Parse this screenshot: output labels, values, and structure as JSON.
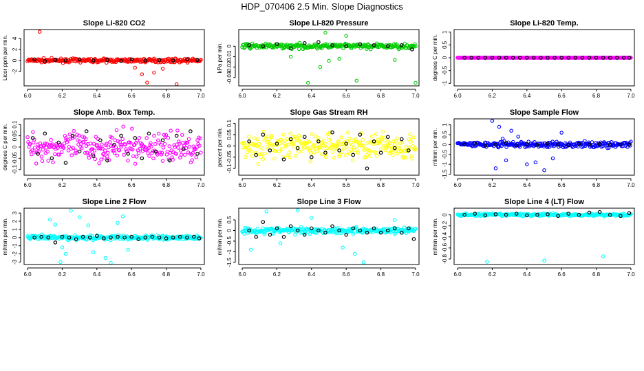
{
  "title": "HDP_070406  2.5 Min. Slope Diagnostics",
  "chart_data": [
    {
      "type": "scatter",
      "title": "Slope Li-820 CO2",
      "ylabel": "Licor ppm per min.",
      "color": "#ff0000",
      "xlim": [
        5.98,
        7.02
      ],
      "ylim": [
        -4.6,
        5.6
      ],
      "yticks": [
        -2,
        0,
        2,
        4
      ],
      "xticks": [
        6.0,
        6.2,
        6.4,
        6.6,
        6.8,
        7.0
      ],
      "xtick_labels": [
        "6.0",
        "6.2",
        "6.4",
        "6.6",
        "6.8",
        "7.0"
      ],
      "spread": 0.55,
      "outliers": [
        [
          6.07,
          5.2
        ],
        [
          6.66,
          -2.5
        ],
        [
          6.69,
          -4.0
        ],
        [
          6.73,
          -2.2
        ],
        [
          6.78,
          -1.5
        ],
        [
          6.86,
          -4.3
        ],
        [
          6.62,
          -1.3
        ]
      ],
      "black_points": [
        [
          6.04,
          0.2
        ],
        [
          6.1,
          -0.1
        ],
        [
          6.16,
          0.1
        ],
        [
          6.22,
          0.0
        ],
        [
          6.3,
          0.2
        ],
        [
          6.38,
          0.0
        ],
        [
          6.46,
          0.1
        ],
        [
          6.54,
          -0.1
        ],
        [
          6.6,
          0.2
        ],
        [
          6.68,
          0.0
        ],
        [
          6.76,
          0.1
        ],
        [
          6.84,
          0.0
        ],
        [
          6.92,
          0.2
        ],
        [
          6.98,
          0.1
        ]
      ]
    },
    {
      "type": "scatter",
      "title": "Slope Li-820 Pressure",
      "ylabel": "kPa per min.",
      "color": "#00cc00",
      "xlim": [
        5.98,
        7.02
      ],
      "ylim": [
        -0.038,
        0.016
      ],
      "yticks": [
        -0.03,
        -0.02,
        -0.01,
        0.0
      ],
      "xticks": [
        6.0,
        6.2,
        6.4,
        6.6,
        6.8,
        7.0
      ],
      "xtick_labels": [
        "6.0",
        "6.2",
        "6.4",
        "6.6",
        "6.8",
        "7.0"
      ],
      "spread": 0.004,
      "outliers": [
        [
          6.38,
          -0.035
        ],
        [
          6.66,
          -0.033
        ],
        [
          7.0,
          -0.035
        ],
        [
          6.45,
          -0.02
        ],
        [
          6.5,
          -0.014
        ],
        [
          6.56,
          -0.012
        ],
        [
          6.28,
          -0.01
        ],
        [
          6.88,
          -0.013
        ],
        [
          6.48,
          0.013
        ],
        [
          6.6,
          0.01
        ]
      ],
      "black_points": [
        [
          6.04,
          0.001
        ],
        [
          6.12,
          0.0
        ],
        [
          6.2,
          0.002
        ],
        [
          6.28,
          -0.002
        ],
        [
          6.36,
          0.003
        ],
        [
          6.44,
          0.004
        ],
        [
          6.52,
          0.001
        ],
        [
          6.6,
          0.0
        ],
        [
          6.68,
          0.002
        ],
        [
          6.76,
          0.001
        ],
        [
          6.84,
          0.0
        ],
        [
          6.92,
          0.001
        ],
        [
          6.98,
          -0.003
        ]
      ]
    },
    {
      "type": "scatter",
      "title": "Slope Li-820 Temp.",
      "ylabel": "degrees C per min.",
      "color": "#ff00ff",
      "xlim": [
        5.98,
        7.02
      ],
      "ylim": [
        -1.1,
        1.1
      ],
      "yticks": [
        -1.0,
        -0.5,
        0.0,
        0.5,
        1.0
      ],
      "xticks": [
        6.0,
        6.2,
        6.4,
        6.6,
        6.8,
        7.0
      ],
      "xtick_labels": [
        "6.0",
        "6.2",
        "6.4",
        "6.6",
        "6.8",
        "7.0"
      ],
      "spread": 0.0,
      "outliers": [],
      "black_points": [
        [
          6.04,
          0.0
        ],
        [
          6.08,
          0.0
        ],
        [
          6.12,
          0.0
        ],
        [
          6.16,
          0.0
        ],
        [
          6.2,
          0.0
        ],
        [
          6.24,
          0.0
        ],
        [
          6.28,
          0.0
        ],
        [
          6.32,
          0.0
        ],
        [
          6.36,
          0.0
        ],
        [
          6.4,
          0.0
        ],
        [
          6.44,
          0.0
        ],
        [
          6.48,
          0.0
        ],
        [
          6.52,
          0.0
        ],
        [
          6.56,
          0.0
        ],
        [
          6.6,
          0.0
        ],
        [
          6.64,
          0.0
        ],
        [
          6.68,
          0.0
        ],
        [
          6.72,
          0.0
        ],
        [
          6.76,
          0.0
        ],
        [
          6.8,
          0.0
        ],
        [
          6.84,
          0.0
        ],
        [
          6.88,
          0.0
        ],
        [
          6.92,
          0.0
        ],
        [
          6.96,
          0.0
        ],
        [
          6.99,
          0.0
        ]
      ]
    },
    {
      "type": "scatter",
      "title": "Slope Amb. Box Temp.",
      "ylabel": "degrees C per min.",
      "color": "#ff00ff",
      "xlim": [
        5.98,
        7.02
      ],
      "ylim": [
        -0.125,
        0.125
      ],
      "yticks": [
        -0.1,
        -0.05,
        0.0,
        0.05,
        0.1
      ],
      "xticks": [
        6.0,
        6.2,
        6.4,
        6.6,
        6.8,
        7.0
      ],
      "xtick_labels": [
        "6.0",
        "6.2",
        "6.4",
        "6.6",
        "6.8",
        "7.0"
      ],
      "spread": 0.11,
      "outliers": [],
      "black_points": [
        [
          6.03,
          0.04
        ],
        [
          6.06,
          -0.03
        ],
        [
          6.1,
          0.06
        ],
        [
          6.14,
          -0.05
        ],
        [
          6.18,
          0.02
        ],
        [
          6.22,
          -0.07
        ],
        [
          6.26,
          0.05
        ],
        [
          6.3,
          -0.02
        ],
        [
          6.34,
          0.07
        ],
        [
          6.38,
          -0.04
        ],
        [
          6.42,
          0.03
        ],
        [
          6.46,
          -0.06
        ],
        [
          6.5,
          0.01
        ],
        [
          6.54,
          0.05
        ],
        [
          6.58,
          -0.03
        ],
        [
          6.62,
          0.04
        ],
        [
          6.66,
          -0.05
        ],
        [
          6.7,
          0.06
        ],
        [
          6.74,
          -0.02
        ],
        [
          6.78,
          0.03
        ],
        [
          6.82,
          -0.06
        ],
        [
          6.86,
          0.05
        ],
        [
          6.9,
          -0.01
        ],
        [
          6.94,
          0.07
        ],
        [
          6.98,
          -0.03
        ]
      ]
    },
    {
      "type": "scatter",
      "title": "Slope Gas Stream RH",
      "ylabel": "percent per min.",
      "color": "#ffff00",
      "xlim": [
        5.98,
        7.02
      ],
      "ylim": [
        -0.13,
        0.12
      ],
      "yticks": [
        -0.1,
        -0.05,
        0.0,
        0.05,
        0.1
      ],
      "xticks": [
        6.0,
        6.2,
        6.4,
        6.6,
        6.8,
        7.0
      ],
      "xtick_labels": [
        "6.0",
        "6.2",
        "6.4",
        "6.6",
        "6.8",
        "7.0"
      ],
      "spread": 0.1,
      "outliers": [],
      "black_points": [
        [
          6.04,
          0.02
        ],
        [
          6.08,
          -0.04
        ],
        [
          6.12,
          0.05
        ],
        [
          6.16,
          -0.02
        ],
        [
          6.2,
          0.01
        ],
        [
          6.24,
          -0.06
        ],
        [
          6.28,
          0.03
        ],
        [
          6.32,
          -0.01
        ],
        [
          6.36,
          0.04
        ],
        [
          6.4,
          -0.05
        ],
        [
          6.44,
          0.02
        ],
        [
          6.48,
          -0.03
        ],
        [
          6.52,
          0.06
        ],
        [
          6.56,
          -0.02
        ],
        [
          6.6,
          0.01
        ],
        [
          6.64,
          -0.04
        ],
        [
          6.68,
          0.05
        ],
        [
          6.72,
          -0.1
        ],
        [
          6.76,
          0.02
        ],
        [
          6.8,
          -0.03
        ],
        [
          6.84,
          0.04
        ],
        [
          6.88,
          -0.01
        ],
        [
          6.92,
          0.03
        ],
        [
          6.96,
          -0.02
        ]
      ]
    },
    {
      "type": "scatter",
      "title": "Slope Sample Flow",
      "ylabel": "ml/min per min.",
      "color": "#0000ff",
      "xlim": [
        5.98,
        7.02
      ],
      "ylim": [
        -1.55,
        1.3
      ],
      "yticks": [
        -1.5,
        -1.0,
        -0.5,
        0.0,
        0.5,
        1.0
      ],
      "xticks": [
        6.0,
        6.2,
        6.4,
        6.6,
        6.8,
        7.0
      ],
      "xtick_labels": [
        "6.0",
        "6.2",
        "6.4",
        "6.6",
        "6.8",
        "7.0"
      ],
      "spread": 0.25,
      "outliers": [
        [
          6.2,
          1.2
        ],
        [
          6.24,
          0.9
        ],
        [
          6.22,
          -1.2
        ],
        [
          6.28,
          -0.8
        ],
        [
          6.31,
          0.7
        ],
        [
          6.4,
          -1.0
        ],
        [
          6.45,
          -0.9
        ],
        [
          6.5,
          -1.3
        ],
        [
          6.55,
          -0.7
        ],
        [
          6.6,
          0.6
        ],
        [
          6.35,
          0.4
        ],
        [
          6.26,
          0.3
        ]
      ],
      "black_points": [
        [
          6.04,
          0.0
        ],
        [
          6.1,
          0.05
        ],
        [
          6.16,
          -0.05
        ],
        [
          6.22,
          0.0
        ],
        [
          6.28,
          0.08
        ],
        [
          6.34,
          -0.04
        ],
        [
          6.4,
          0.02
        ],
        [
          6.46,
          -0.02
        ],
        [
          6.52,
          0.05
        ],
        [
          6.58,
          0.0
        ],
        [
          6.64,
          -0.03
        ],
        [
          6.7,
          0.04
        ],
        [
          6.76,
          0.0
        ],
        [
          6.82,
          0.03
        ],
        [
          6.88,
          -0.02
        ],
        [
          6.94,
          0.01
        ],
        [
          6.99,
          0.0
        ]
      ]
    },
    {
      "type": "scatter",
      "title": "Slope Line 2 Flow",
      "ylabel": "ml/min per min.",
      "color": "#00ffff",
      "xlim": [
        5.98,
        7.02
      ],
      "ylim": [
        -3.3,
        3.6
      ],
      "yticks": [
        -3,
        -2,
        -1,
        0,
        1,
        2,
        3
      ],
      "xticks": [
        6.0,
        6.2,
        6.4,
        6.6,
        6.8,
        7.0
      ],
      "xtick_labels": [
        "6.0",
        "6.2",
        "6.4",
        "6.6",
        "6.8",
        "7.0"
      ],
      "spread": 0.5,
      "outliers": [
        [
          6.13,
          2.2
        ],
        [
          6.19,
          -3.0
        ],
        [
          6.22,
          -2.0
        ],
        [
          6.25,
          3.3
        ],
        [
          6.3,
          2.5
        ],
        [
          6.38,
          -1.8
        ],
        [
          6.45,
          -2.5
        ],
        [
          6.52,
          1.8
        ],
        [
          6.55,
          2.6
        ],
        [
          6.58,
          -1.5
        ],
        [
          6.35,
          1.5
        ],
        [
          6.48,
          -3.1
        ],
        [
          6.2,
          -1.2
        ],
        [
          6.16,
          1.6
        ]
      ],
      "black_points": [
        [
          6.04,
          0.0
        ],
        [
          6.08,
          0.1
        ],
        [
          6.12,
          0.0
        ],
        [
          6.16,
          -0.6
        ],
        [
          6.2,
          0.1
        ],
        [
          6.24,
          0.0
        ],
        [
          6.28,
          -0.2
        ],
        [
          6.32,
          0.1
        ],
        [
          6.36,
          0.0
        ],
        [
          6.4,
          0.2
        ],
        [
          6.44,
          -0.1
        ],
        [
          6.48,
          0.0
        ],
        [
          6.52,
          0.1
        ],
        [
          6.56,
          0.0
        ],
        [
          6.6,
          0.1
        ],
        [
          6.64,
          -0.2
        ],
        [
          6.68,
          0.0
        ],
        [
          6.72,
          0.1
        ],
        [
          6.76,
          0.0
        ],
        [
          6.8,
          -0.1
        ],
        [
          6.84,
          0.0
        ],
        [
          6.88,
          0.1
        ],
        [
          6.92,
          0.0
        ],
        [
          6.96,
          0.1
        ],
        [
          6.99,
          -0.1
        ]
      ]
    },
    {
      "type": "scatter",
      "title": "Slope Line 3 Flow",
      "ylabel": "ml/min per min.",
      "color": "#00ffff",
      "xlim": [
        5.98,
        7.02
      ],
      "ylim": [
        -1.6,
        1.05
      ],
      "yticks": [
        -1.5,
        -1.0,
        -0.5,
        0.0,
        0.5
      ],
      "xticks": [
        6.0,
        6.2,
        6.4,
        6.6,
        6.8,
        7.0
      ],
      "xtick_labels": [
        "6.0",
        "6.2",
        "6.4",
        "6.6",
        "6.8",
        "7.0"
      ],
      "spread": 0.25,
      "outliers": [
        [
          6.14,
          0.9
        ],
        [
          6.32,
          0.95
        ],
        [
          6.7,
          -1.5
        ],
        [
          6.65,
          -1.1
        ],
        [
          6.05,
          -0.9
        ],
        [
          6.4,
          0.6
        ],
        [
          6.58,
          -0.8
        ],
        [
          6.88,
          0.5
        ],
        [
          6.22,
          -0.6
        ]
      ],
      "black_points": [
        [
          6.04,
          0.0
        ],
        [
          6.08,
          -0.3
        ],
        [
          6.12,
          0.4
        ],
        [
          6.16,
          -0.2
        ],
        [
          6.2,
          0.1
        ],
        [
          6.24,
          -0.3
        ],
        [
          6.28,
          0.2
        ],
        [
          6.32,
          0.0
        ],
        [
          6.36,
          -0.2
        ],
        [
          6.4,
          0.1
        ],
        [
          6.44,
          0.0
        ],
        [
          6.48,
          -0.1
        ],
        [
          6.52,
          0.2
        ],
        [
          6.56,
          0.0
        ],
        [
          6.6,
          -0.2
        ],
        [
          6.64,
          0.1
        ],
        [
          6.68,
          0.0
        ],
        [
          6.72,
          -0.1
        ],
        [
          6.76,
          0.1
        ],
        [
          6.8,
          -0.1
        ],
        [
          6.84,
          0.0
        ],
        [
          6.88,
          0.1
        ],
        [
          6.92,
          -0.1
        ],
        [
          6.96,
          0.1
        ],
        [
          6.99,
          -0.4
        ]
      ]
    },
    {
      "type": "scatter",
      "title": "Slope Line 4 (LT) Flow",
      "ylabel": "ml/min per min.",
      "color": "#00ffff",
      "xlim": [
        5.98,
        7.02
      ],
      "ylim": [
        -0.9,
        0.12
      ],
      "yticks": [
        -0.8,
        -0.6,
        -0.4,
        -0.2,
        0.0
      ],
      "xticks": [
        6.0,
        6.2,
        6.4,
        6.6,
        6.8,
        7.0
      ],
      "xtick_labels": [
        "6.0",
        "6.2",
        "6.4",
        "6.6",
        "6.8",
        "7.0"
      ],
      "spread": 0.04,
      "outliers": [
        [
          6.17,
          -0.85
        ],
        [
          6.5,
          -0.83
        ],
        [
          6.84,
          -0.75
        ]
      ],
      "black_points": [
        [
          6.04,
          0.0
        ],
        [
          6.1,
          0.02
        ],
        [
          6.16,
          -0.01
        ],
        [
          6.22,
          0.01
        ],
        [
          6.28,
          0.0
        ],
        [
          6.34,
          0.02
        ],
        [
          6.4,
          -0.01
        ],
        [
          6.46,
          0.0
        ],
        [
          6.52,
          0.01
        ],
        [
          6.58,
          -0.02
        ],
        [
          6.64,
          0.02
        ],
        [
          6.7,
          0.0
        ],
        [
          6.76,
          0.04
        ],
        [
          6.82,
          0.05
        ],
        [
          6.88,
          0.0
        ],
        [
          6.94,
          -0.02
        ],
        [
          6.99,
          0.03
        ]
      ]
    }
  ]
}
